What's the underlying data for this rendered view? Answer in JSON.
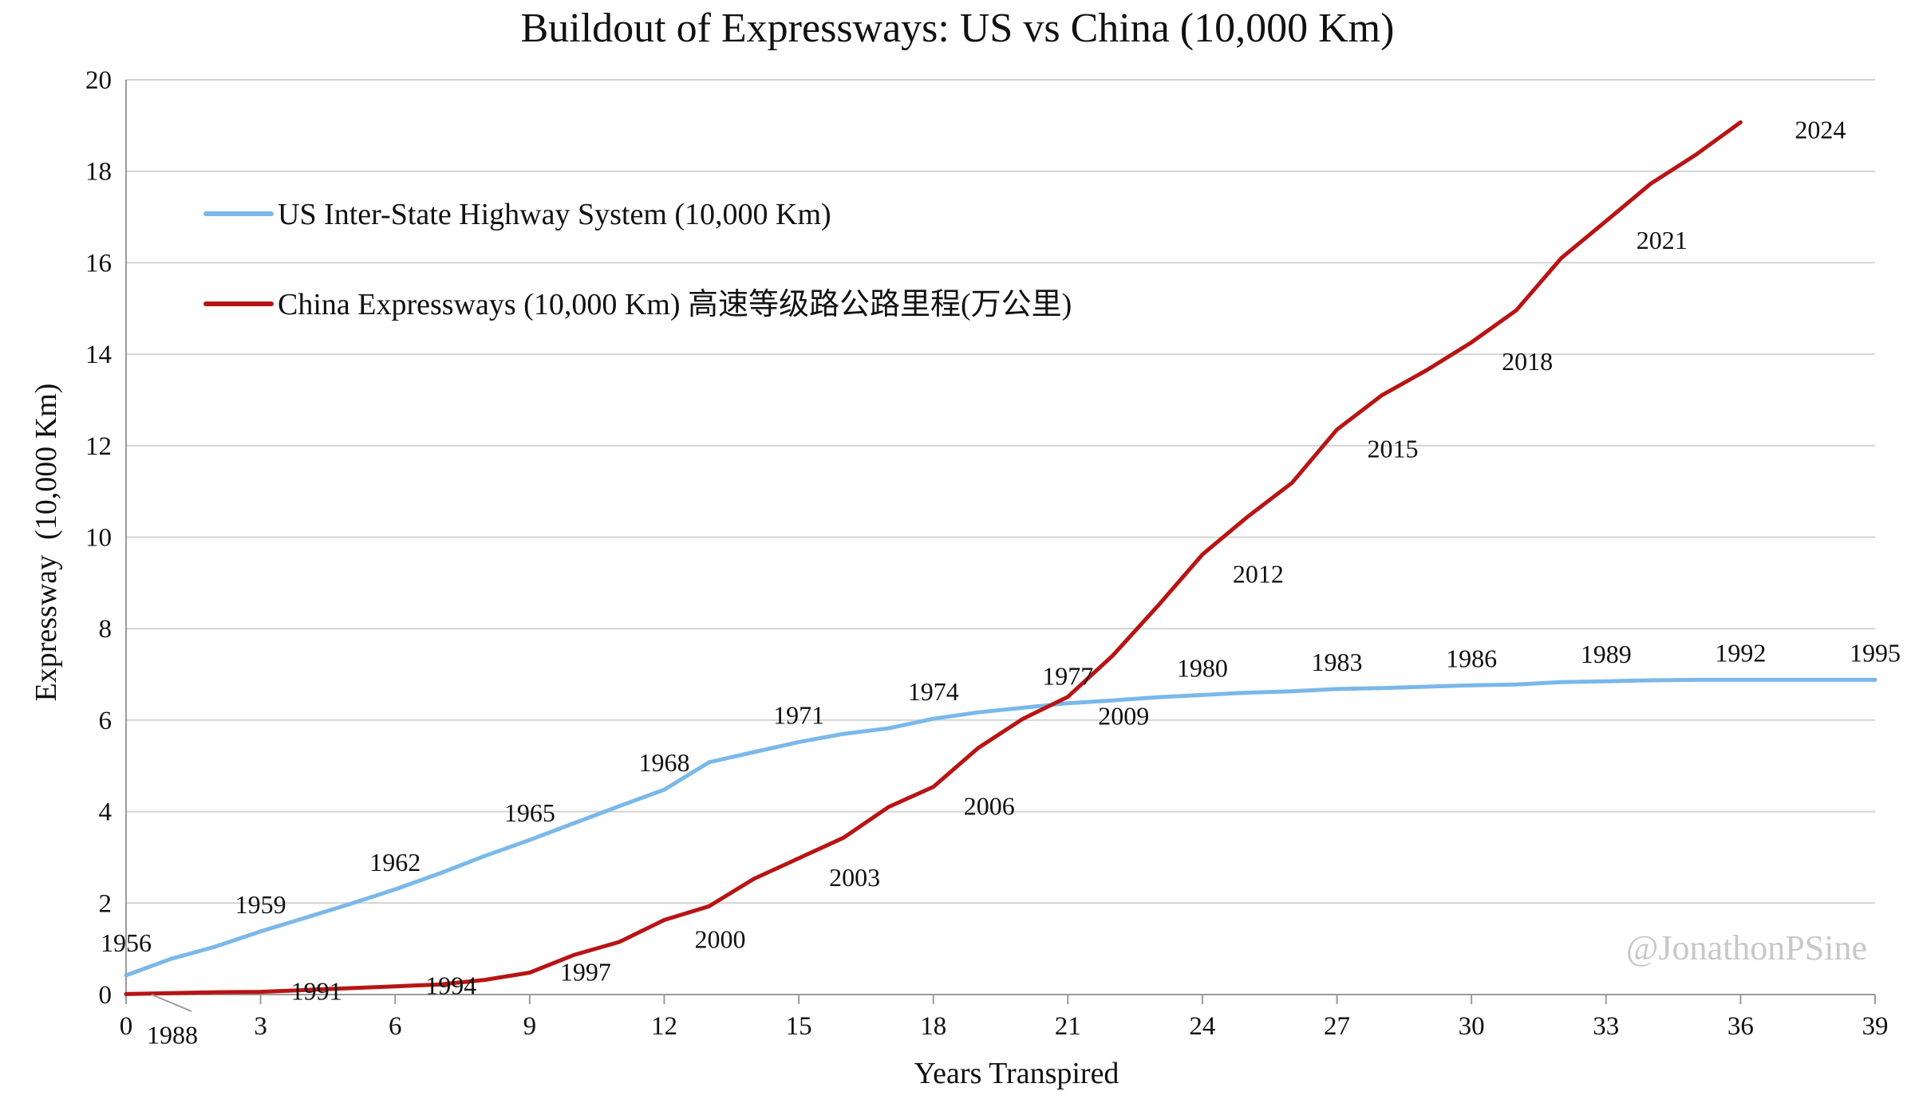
{
  "chart_data": {
    "type": "line",
    "title": "Buildout of Expressways: US vs China (10,000 Km)",
    "xlabel": "Years Transpired",
    "ylabel": "Expressway  (10,000 Km)",
    "xlim": [
      0,
      39
    ],
    "ylim": [
      0,
      20
    ],
    "x_ticks": [
      0,
      3,
      6,
      9,
      12,
      15,
      18,
      21,
      24,
      27,
      30,
      33,
      36,
      39
    ],
    "y_ticks": [
      0,
      2,
      4,
      6,
      8,
      10,
      12,
      14,
      16,
      18,
      20
    ],
    "grid": true,
    "legend_position": "top-left",
    "watermark": "@JonathonPSine",
    "series": [
      {
        "name": "US Inter-State Highway System (10,000 Km)",
        "color": "#7ab8ea",
        "x": [
          0,
          1,
          2,
          3,
          4,
          5,
          6,
          7,
          8,
          9,
          10,
          11,
          12,
          13,
          14,
          15,
          16,
          17,
          18,
          19,
          20,
          21,
          22,
          23,
          24,
          25,
          26,
          27,
          28,
          29,
          30,
          31,
          32,
          33,
          34,
          35,
          36,
          37,
          38,
          39
        ],
        "values": [
          0.42,
          0.78,
          1.05,
          1.38,
          1.68,
          1.98,
          2.3,
          2.65,
          3.03,
          3.38,
          3.75,
          4.12,
          4.48,
          5.08,
          5.3,
          5.52,
          5.7,
          5.82,
          6.03,
          6.17,
          6.27,
          6.37,
          6.43,
          6.5,
          6.55,
          6.6,
          6.63,
          6.68,
          6.7,
          6.73,
          6.76,
          6.78,
          6.83,
          6.85,
          6.87,
          6.88,
          6.88,
          6.88,
          6.88,
          6.88
        ],
        "point_labels": [
          {
            "x": 0,
            "y": 0.42,
            "text": "1956"
          },
          {
            "x": 3,
            "y": 1.38,
            "text": "1959"
          },
          {
            "x": 6,
            "y": 2.3,
            "text": "1962"
          },
          {
            "x": 9,
            "y": 3.38,
            "text": "1965"
          },
          {
            "x": 12,
            "y": 4.48,
            "text": "1968"
          },
          {
            "x": 15,
            "y": 5.52,
            "text": "1971"
          },
          {
            "x": 18,
            "y": 6.03,
            "text": "1974"
          },
          {
            "x": 21,
            "y": 6.37,
            "text": "1977"
          },
          {
            "x": 24,
            "y": 6.55,
            "text": "1980"
          },
          {
            "x": 27,
            "y": 6.68,
            "text": "1983"
          },
          {
            "x": 30,
            "y": 6.76,
            "text": "1986"
          },
          {
            "x": 33,
            "y": 6.85,
            "text": "1989"
          },
          {
            "x": 36,
            "y": 6.88,
            "text": "1992"
          },
          {
            "x": 39,
            "y": 6.88,
            "text": "1995"
          }
        ]
      },
      {
        "name": "China Expressways (10,000 Km) 高速等级路公路里程(万公里)",
        "color": "#b81414",
        "x": [
          0,
          1,
          2,
          3,
          4,
          5,
          6,
          7,
          8,
          9,
          10,
          11,
          12,
          13,
          14,
          15,
          16,
          17,
          18,
          19,
          20,
          21,
          22,
          23,
          24,
          25,
          26,
          27,
          28,
          29,
          30,
          31,
          32,
          33,
          34,
          35,
          36
        ],
        "values": [
          0.01,
          0.03,
          0.05,
          0.06,
          0.1,
          0.14,
          0.18,
          0.22,
          0.32,
          0.48,
          0.87,
          1.15,
          1.63,
          1.93,
          2.53,
          2.98,
          3.43,
          4.1,
          4.54,
          5.39,
          6.03,
          6.51,
          7.41,
          8.49,
          9.62,
          10.44,
          11.19,
          12.35,
          13.1,
          13.65,
          14.26,
          14.96,
          16.1,
          16.91,
          17.73,
          18.36,
          19.07
        ],
        "point_labels": [
          {
            "x": 0,
            "y": 0.01,
            "text": "1988"
          },
          {
            "x": 3,
            "y": 0.06,
            "text": "1991"
          },
          {
            "x": 6,
            "y": 0.18,
            "text": "1994"
          },
          {
            "x": 9,
            "y": 0.48,
            "text": "1997"
          },
          {
            "x": 12,
            "y": 1.63,
            "text": "2000"
          },
          {
            "x": 15,
            "y": 2.98,
            "text": "2003"
          },
          {
            "x": 18,
            "y": 4.54,
            "text": "2006"
          },
          {
            "x": 21,
            "y": 6.51,
            "text": "2009"
          },
          {
            "x": 24,
            "y": 9.62,
            "text": "2012"
          },
          {
            "x": 27,
            "y": 12.35,
            "text": "2015"
          },
          {
            "x": 30,
            "y": 14.26,
            "text": "2018"
          },
          {
            "x": 33,
            "y": 16.91,
            "text": "2021"
          },
          {
            "x": 36,
            "y": 19.07,
            "text": "2024"
          }
        ]
      }
    ]
  }
}
